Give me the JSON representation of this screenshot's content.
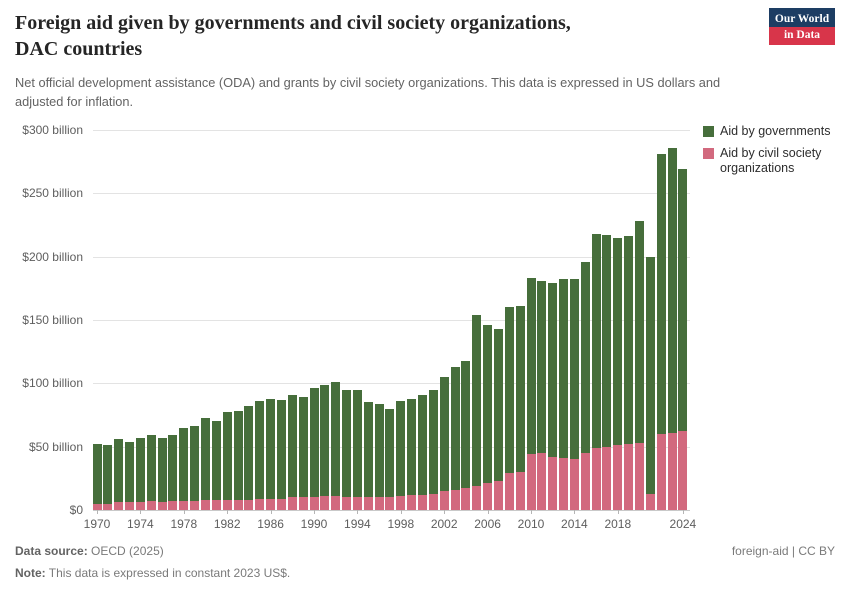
{
  "header": {
    "title_line1": "Foreign aid given by governments and civil society organizations,",
    "title_line2": "DAC countries",
    "subtitle": "Net official development assistance (ODA) and grants by civil society organizations. This data is expressed in US dollars and adjusted for inflation.",
    "logo": {
      "line1": "Our World",
      "line2": "in Data"
    }
  },
  "legend": [
    {
      "label": "Aid by governments",
      "color": "#466e3b"
    },
    {
      "label": "Aid by civil society organizations",
      "color": "#d2697e"
    }
  ],
  "chart_data": {
    "type": "bar",
    "stacked": true,
    "title": "Foreign aid given by governments and civil society organizations, DAC countries",
    "unit": "US$ billion (constant 2023 US$)",
    "xlabel": "",
    "ylabel": "",
    "grid": true,
    "legend_position": "right",
    "ylim": [
      0,
      300
    ],
    "years": [
      1970,
      1971,
      1972,
      1973,
      1974,
      1975,
      1976,
      1977,
      1978,
      1979,
      1980,
      1981,
      1982,
      1983,
      1984,
      1985,
      1986,
      1987,
      1988,
      1989,
      1990,
      1991,
      1992,
      1993,
      1994,
      1995,
      1996,
      1997,
      1998,
      1999,
      2000,
      2001,
      2002,
      2003,
      2004,
      2005,
      2006,
      2007,
      2008,
      2009,
      2010,
      2011,
      2012,
      2013,
      2014,
      2015,
      2016,
      2017,
      2018,
      2019,
      2020,
      2021,
      2022,
      2023,
      2024
    ],
    "series": [
      {
        "name": "Aid by civil society organizations",
        "color": "#d2697e",
        "values": [
          5,
          5,
          6,
          6,
          6,
          7,
          6,
          7,
          7,
          7,
          8,
          8,
          8,
          8,
          8,
          9,
          9,
          9,
          10,
          10,
          10,
          11,
          11,
          10,
          10,
          10,
          10,
          10,
          11,
          12,
          12,
          13,
          15,
          16,
          17,
          19,
          21,
          23,
          29,
          30,
          44,
          45,
          42,
          41,
          40,
          45,
          49,
          50,
          51,
          52,
          53,
          13,
          60,
          61,
          62
        ]
      },
      {
        "name": "Aid by governments",
        "color": "#466e3b",
        "values": [
          47,
          46,
          50,
          48,
          51,
          52,
          51,
          52,
          58,
          59,
          65,
          62,
          69,
          70,
          74,
          77,
          79,
          78,
          81,
          79,
          86,
          88,
          90,
          85,
          85,
          75,
          74,
          70,
          75,
          76,
          79,
          82,
          90,
          97,
          101,
          135,
          125,
          120,
          131,
          131,
          139,
          136,
          137,
          141,
          142,
          151,
          169,
          167,
          164,
          164,
          175,
          187,
          221,
          225,
          207
        ]
      }
    ],
    "y_axis_ticks": [
      {
        "value": 0,
        "label": "$0"
      },
      {
        "value": 50,
        "label": "$50 billion"
      },
      {
        "value": 100,
        "label": "$100 billion"
      },
      {
        "value": 150,
        "label": "$150 billion"
      },
      {
        "value": 200,
        "label": "$200 billion"
      },
      {
        "value": 250,
        "label": "$250 billion"
      },
      {
        "value": 300,
        "label": "$300 billion"
      }
    ],
    "x_axis_ticks": [
      1970,
      1974,
      1978,
      1982,
      1986,
      1990,
      1994,
      1998,
      2002,
      2006,
      2010,
      2014,
      2018,
      2024
    ]
  },
  "footer": {
    "source_label": "Data source:",
    "source_value": "OECD (2025)",
    "note_label": "Note:",
    "note_value": "This data is expressed in constant 2023 US$.",
    "right": "foreign-aid | CC BY"
  }
}
